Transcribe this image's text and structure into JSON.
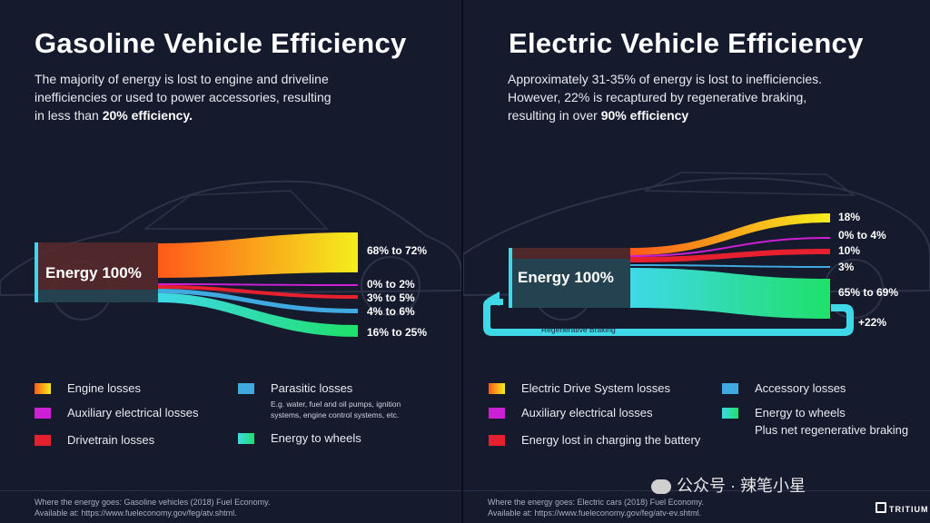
{
  "gasoline": {
    "title": "Gasoline Vehicle Efficiency",
    "subtitle_text": "The majority of energy is lost to engine and driveline inefficiencies or used to power accessories, resulting in less than ",
    "subtitle_bold": "20% efficiency.",
    "source_label": "Energy 100%",
    "outputs": [
      {
        "label": "68% to 72%",
        "color": "#f5a623"
      },
      {
        "label": "0% to 2%",
        "color": "#cc1fd6"
      },
      {
        "label": "3% to 5%",
        "color": "#e6202f"
      },
      {
        "label": "4% to 6%",
        "color": "#3fa9e0"
      },
      {
        "label": "16% to 25%",
        "color": "#1fe08a"
      }
    ],
    "legend": {
      "engine": "Engine losses",
      "auxiliary": "Auxiliary electrical losses",
      "drivetrain": "Drivetrain losses",
      "parasitic": "Parasitic losses",
      "parasitic_note_1": "E.g. water, fuel and oil pumps, ignition",
      "parasitic_note_2": "systems, engine control systems, etc.",
      "wheels": "Energy to wheels"
    },
    "source_line_1": "Where the energy goes: Gasoline vehicles (2018) Fuel Economy.",
    "source_line_2": "Available at: https://www.fueleconomy.gov/feg/atv.shtml."
  },
  "electric": {
    "title": "Electric Vehicle Efficiency",
    "subtitle_line_1": "Approximately 31-35% of energy is lost to inefficiencies.",
    "subtitle_line_2": "However, 22% is recaptured by regenerative braking,",
    "subtitle_line_3_text": "resulting in over ",
    "subtitle_bold": "90% efficiency",
    "source_label": "Energy 100%",
    "outputs": [
      {
        "label": "18%",
        "color": "#f5a623"
      },
      {
        "label": "0% to 4%",
        "color": "#cc1fd6"
      },
      {
        "label": "10%",
        "color": "#e6202f"
      },
      {
        "label": "3%",
        "color": "#3fa9e0"
      },
      {
        "label": "65% to 69%",
        "color": "#1fe08a"
      }
    ],
    "regen_label": "Regenerative Braking",
    "regen_value": "+22%",
    "legend": {
      "drive_system": "Electric Drive System losses",
      "auxiliary": "Auxiliary electrical losses",
      "charging": "Energy lost in charging the battery",
      "accessory": "Accessory losses",
      "wheels": "Energy to wheels",
      "wheels_note": "Plus net regenerative braking"
    },
    "source_line_1": "Where the energy goes: Electric cars (2018) Fuel Economy.",
    "source_line_2": "Available at: https://www.fueleconomy.gov/feg/atv-ev.shtml."
  },
  "watermark": "公众号 · 辣笔小星",
  "brand": "TRITIUM"
}
